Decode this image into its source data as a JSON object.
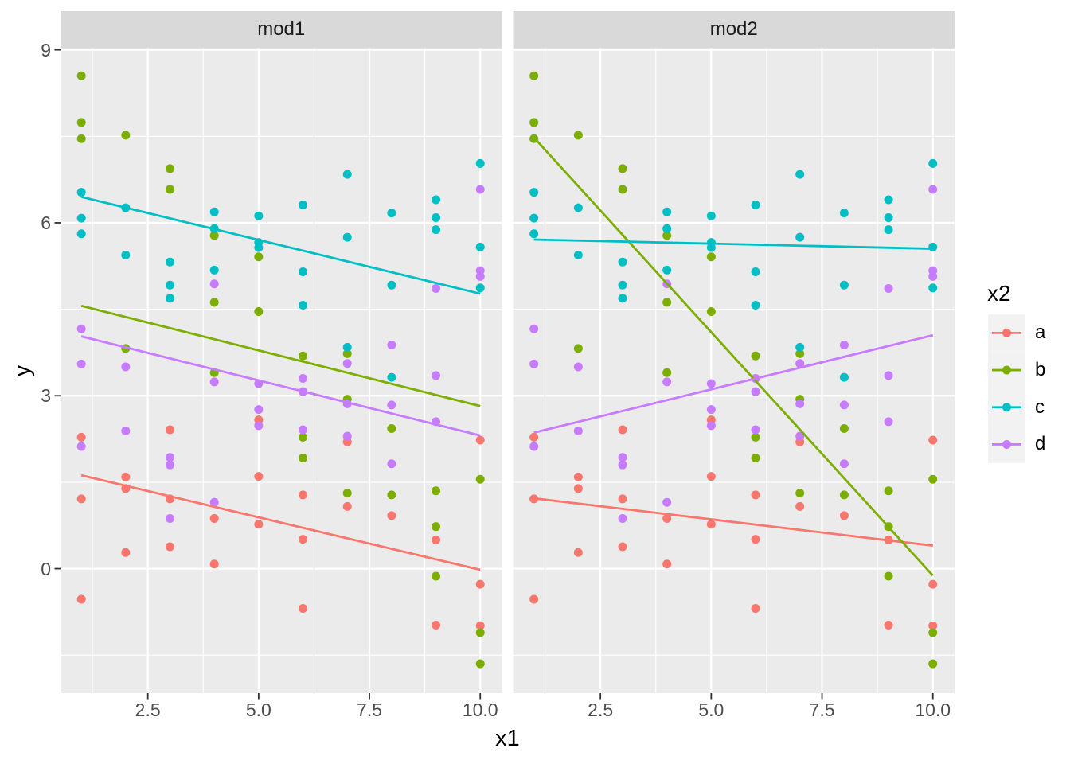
{
  "chart_data": {
    "type": "scatter",
    "title": "",
    "facets": [
      "mod1",
      "mod2"
    ],
    "xlabel": "x1",
    "ylabel": "y",
    "x_tick_values": [
      2.5,
      5.0,
      7.5,
      10.0
    ],
    "x_tick_labels": [
      "2.5",
      "5.0",
      "7.5",
      "10.0"
    ],
    "y_tick_values": [
      0,
      3,
      6,
      9
    ],
    "y_tick_labels": [
      "0",
      "3",
      "6",
      "9"
    ],
    "x_minor_gridlines": [
      1.25,
      3.75,
      6.25,
      8.75
    ],
    "y_minor_gridlines": [
      -1.5,
      1.5,
      4.5,
      7.5
    ],
    "xlim": [
      0.53,
      10.49
    ],
    "ylim": [
      -2.16,
      9.03
    ],
    "grid": true,
    "legend": {
      "title": "x2",
      "position": "right",
      "items": [
        {
          "label": "a",
          "color": "#F8766D"
        },
        {
          "label": "b",
          "color": "#7CAE00"
        },
        {
          "label": "c",
          "color": "#00BFC4"
        },
        {
          "label": "d",
          "color": "#C77CFF"
        }
      ]
    },
    "series": [
      {
        "name": "a",
        "color": "#F8766D",
        "points": [
          [
            1,
            2.28
          ],
          [
            1,
            1.21
          ],
          [
            1,
            -0.53
          ],
          [
            2,
            1.59
          ],
          [
            2,
            1.39
          ],
          [
            2,
            0.28
          ],
          [
            3,
            2.41
          ],
          [
            3,
            1.21
          ],
          [
            3,
            0.38
          ],
          [
            4,
            0.87
          ],
          [
            4,
            0.08
          ],
          [
            5,
            2.58
          ],
          [
            5,
            1.6
          ],
          [
            5,
            0.77
          ],
          [
            6,
            1.28
          ],
          [
            6,
            0.51
          ],
          [
            6,
            -0.69
          ],
          [
            7,
            2.2
          ],
          [
            7,
            1.08
          ],
          [
            8,
            0.92
          ],
          [
            9,
            0.5
          ],
          [
            9,
            -0.98
          ],
          [
            10,
            2.23
          ],
          [
            10,
            -0.27
          ],
          [
            10,
            -0.99
          ]
        ]
      },
      {
        "name": "b",
        "color": "#7CAE00",
        "points": [
          [
            1,
            8.55
          ],
          [
            1,
            7.74
          ],
          [
            1,
            7.46
          ],
          [
            2,
            7.52
          ],
          [
            2,
            3.82
          ],
          [
            3,
            6.94
          ],
          [
            3,
            6.58
          ],
          [
            4,
            5.78
          ],
          [
            4,
            4.62
          ],
          [
            4,
            3.4
          ],
          [
            5,
            5.41
          ],
          [
            5,
            4.46
          ],
          [
            6,
            3.69
          ],
          [
            6,
            2.28
          ],
          [
            6,
            1.92
          ],
          [
            7,
            3.73
          ],
          [
            7,
            2.94
          ],
          [
            7,
            1.31
          ],
          [
            8,
            2.43
          ],
          [
            8,
            1.28
          ],
          [
            9,
            1.35
          ],
          [
            9,
            0.73
          ],
          [
            9,
            -0.13
          ],
          [
            10,
            1.55
          ],
          [
            10,
            -1.11
          ],
          [
            10,
            -1.65
          ]
        ]
      },
      {
        "name": "c",
        "color": "#00BFC4",
        "points": [
          [
            1,
            6.53
          ],
          [
            1,
            6.08
          ],
          [
            1,
            5.81
          ],
          [
            2,
            6.26
          ],
          [
            2,
            5.44
          ],
          [
            3,
            5.32
          ],
          [
            3,
            4.92
          ],
          [
            3,
            4.69
          ],
          [
            4,
            6.19
          ],
          [
            4,
            5.9
          ],
          [
            4,
            5.18
          ],
          [
            5,
            6.12
          ],
          [
            5,
            5.66
          ],
          [
            5,
            5.57
          ],
          [
            6,
            6.31
          ],
          [
            6,
            5.15
          ],
          [
            6,
            4.57
          ],
          [
            7,
            6.84
          ],
          [
            7,
            5.75
          ],
          [
            7,
            3.84
          ],
          [
            8,
            6.17
          ],
          [
            8,
            4.92
          ],
          [
            8,
            3.32
          ],
          [
            9,
            6.4
          ],
          [
            9,
            6.09
          ],
          [
            9,
            5.88
          ],
          [
            10,
            7.03
          ],
          [
            10,
            5.58
          ],
          [
            10,
            4.87
          ]
        ]
      },
      {
        "name": "d",
        "color": "#C77CFF",
        "points": [
          [
            1,
            4.16
          ],
          [
            1,
            3.55
          ],
          [
            1,
            2.12
          ],
          [
            2,
            3.5
          ],
          [
            2,
            2.39
          ],
          [
            3,
            1.93
          ],
          [
            3,
            1.8
          ],
          [
            3,
            0.87
          ],
          [
            4,
            4.94
          ],
          [
            4,
            3.24
          ],
          [
            4,
            1.15
          ],
          [
            5,
            3.21
          ],
          [
            5,
            2.76
          ],
          [
            5,
            2.48
          ],
          [
            6,
            3.3
          ],
          [
            6,
            3.07
          ],
          [
            6,
            2.41
          ],
          [
            7,
            3.56
          ],
          [
            7,
            2.86
          ],
          [
            7,
            2.3
          ],
          [
            8,
            3.88
          ],
          [
            8,
            2.84
          ],
          [
            8,
            1.82
          ],
          [
            9,
            4.86
          ],
          [
            9,
            3.35
          ],
          [
            9,
            2.55
          ],
          [
            10,
            6.58
          ],
          [
            10,
            5.17
          ],
          [
            10,
            5.07
          ]
        ]
      }
    ],
    "regression_lines": {
      "mod1": [
        {
          "series": "a",
          "x_start": 1,
          "y_start": 1.62,
          "x_end": 10,
          "y_end": -0.02
        },
        {
          "series": "b",
          "x_start": 1,
          "y_start": 4.56,
          "x_end": 10,
          "y_end": 2.82
        },
        {
          "series": "c",
          "x_start": 1,
          "y_start": 6.45,
          "x_end": 10,
          "y_end": 4.77
        },
        {
          "series": "d",
          "x_start": 1,
          "y_start": 4.03,
          "x_end": 10,
          "y_end": 2.31
        }
      ],
      "mod2": [
        {
          "series": "a",
          "x_start": 1,
          "y_start": 1.22,
          "x_end": 10,
          "y_end": 0.4
        },
        {
          "series": "b",
          "x_start": 1,
          "y_start": 7.48,
          "x_end": 10,
          "y_end": -0.12
        },
        {
          "series": "c",
          "x_start": 1,
          "y_start": 5.71,
          "x_end": 10,
          "y_end": 5.55
        },
        {
          "series": "d",
          "x_start": 1,
          "y_start": 2.36,
          "x_end": 10,
          "y_end": 4.05
        }
      ]
    },
    "theme_colors": {
      "panel_background": "#EBEBEB",
      "strip_background": "#D9D9D9",
      "gridline": "#FFFFFF",
      "tick_mark": "#333333",
      "tick_label": "#4D4D4D",
      "text": "#000000",
      "legend_key_background": "#F2F2F2",
      "plot_background": "#FFFFFF"
    }
  }
}
